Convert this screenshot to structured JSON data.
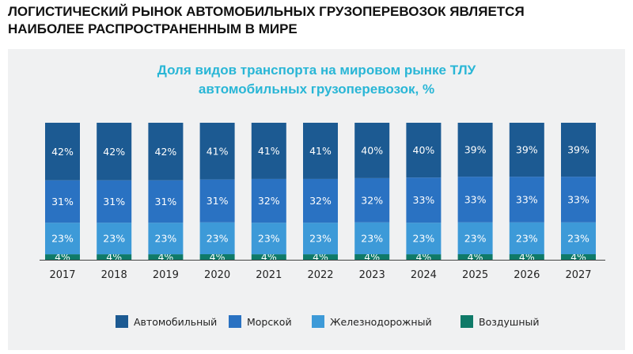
{
  "headline": "ЛОГИСТИЧЕСКИЙ РЫНОК АВТОМОБИЛЬНЫХ ГРУЗОПЕРЕВОЗОК ЯВЛЯЕТСЯ\nНАИБОЛЕЕ РАСПРОСТРАНЕННЫМ В МИРЕ",
  "colors": {
    "panel_bg": "#f0f1f2",
    "title": "#29b6d6"
  },
  "chart_data": {
    "type": "bar",
    "stacked": true,
    "title": "Доля видов транспорта на мировом рынке ТЛУ\nавтомобильных грузоперевозок, %",
    "xlabel": "",
    "ylabel": "",
    "categories": [
      "2017",
      "2018",
      "2019",
      "2020",
      "2021",
      "2022",
      "2023",
      "2024",
      "2025",
      "2026",
      "2027"
    ],
    "series": [
      {
        "name": "Воздушный",
        "color": "#0f7a68",
        "values": [
          4,
          4,
          4,
          4,
          4,
          4,
          4,
          4,
          4,
          4,
          4
        ]
      },
      {
        "name": "Железнодорожный",
        "color": "#3d9ad8",
        "values": [
          23,
          23,
          23,
          23,
          23,
          23,
          23,
          23,
          23,
          23,
          23
        ]
      },
      {
        "name": "Морской",
        "color": "#2a72c2",
        "values": [
          31,
          31,
          31,
          31,
          32,
          32,
          32,
          33,
          33,
          33,
          33
        ]
      },
      {
        "name": "Автомобильный",
        "color": "#1c5a92",
        "values": [
          42,
          42,
          42,
          41,
          41,
          41,
          40,
          40,
          39,
          39,
          39
        ]
      }
    ],
    "value_suffix": "%",
    "legend": {
      "position": "bottom",
      "order": [
        "Автомобильный",
        "Морской",
        "Железнодорожный",
        "Воздушный"
      ]
    },
    "grid": false
  }
}
